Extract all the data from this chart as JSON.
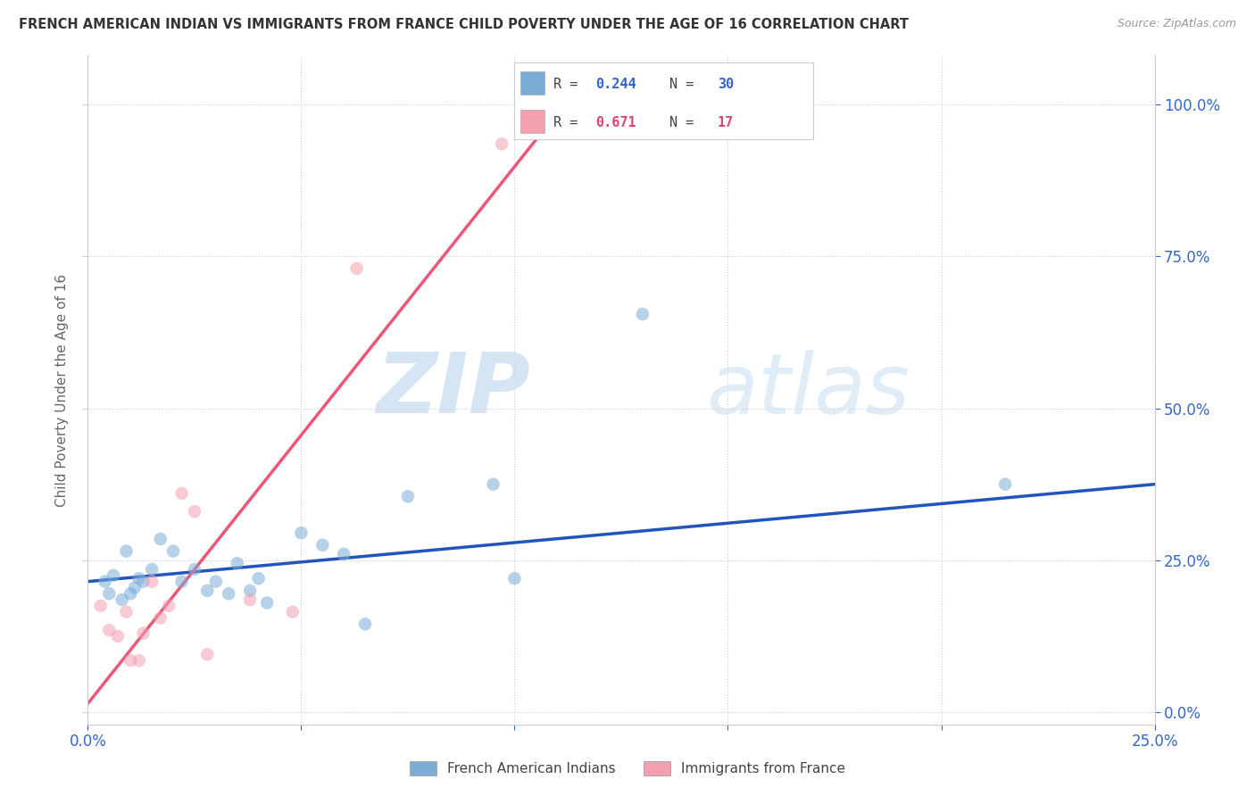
{
  "title": "FRENCH AMERICAN INDIAN VS IMMIGRANTS FROM FRANCE CHILD POVERTY UNDER THE AGE OF 16 CORRELATION CHART",
  "source": "Source: ZipAtlas.com",
  "ylabel": "Child Poverty Under the Age of 16",
  "xlim": [
    0.0,
    0.25
  ],
  "ylim": [
    -0.02,
    1.08
  ],
  "yticks": [
    0.0,
    0.25,
    0.5,
    0.75,
    1.0
  ],
  "ytick_labels": [
    "0.0%",
    "25.0%",
    "50.0%",
    "75.0%",
    "100.0%"
  ],
  "xticks": [
    0.0,
    0.05,
    0.1,
    0.15,
    0.2,
    0.25
  ],
  "xtick_labels": [
    "0.0%",
    "",
    "",
    "",
    "",
    "25.0%"
  ],
  "watermark_zip": "ZIP",
  "watermark_atlas": "atlas",
  "legend_blue_r": "R = ",
  "legend_blue_r_val": "0.244",
  "legend_blue_n": "   N = ",
  "legend_blue_n_val": "30",
  "legend_pink_r": "R = ",
  "legend_pink_r_val": "0.671",
  "legend_pink_n": "   N = ",
  "legend_pink_n_val": "17",
  "legend_labels": [
    "French American Indians",
    "Immigrants from France"
  ],
  "blue_scatter": [
    [
      0.004,
      0.215
    ],
    [
      0.005,
      0.195
    ],
    [
      0.006,
      0.225
    ],
    [
      0.008,
      0.185
    ],
    [
      0.009,
      0.265
    ],
    [
      0.01,
      0.195
    ],
    [
      0.011,
      0.205
    ],
    [
      0.012,
      0.22
    ],
    [
      0.013,
      0.215
    ],
    [
      0.015,
      0.235
    ],
    [
      0.017,
      0.285
    ],
    [
      0.02,
      0.265
    ],
    [
      0.022,
      0.215
    ],
    [
      0.025,
      0.235
    ],
    [
      0.028,
      0.2
    ],
    [
      0.03,
      0.215
    ],
    [
      0.033,
      0.195
    ],
    [
      0.035,
      0.245
    ],
    [
      0.038,
      0.2
    ],
    [
      0.04,
      0.22
    ],
    [
      0.042,
      0.18
    ],
    [
      0.05,
      0.295
    ],
    [
      0.055,
      0.275
    ],
    [
      0.06,
      0.26
    ],
    [
      0.065,
      0.145
    ],
    [
      0.075,
      0.355
    ],
    [
      0.095,
      0.375
    ],
    [
      0.1,
      0.22
    ],
    [
      0.13,
      0.655
    ],
    [
      0.215,
      0.375
    ]
  ],
  "pink_scatter": [
    [
      0.003,
      0.175
    ],
    [
      0.005,
      0.135
    ],
    [
      0.007,
      0.125
    ],
    [
      0.009,
      0.165
    ],
    [
      0.01,
      0.085
    ],
    [
      0.012,
      0.085
    ],
    [
      0.013,
      0.13
    ],
    [
      0.015,
      0.215
    ],
    [
      0.017,
      0.155
    ],
    [
      0.019,
      0.175
    ],
    [
      0.022,
      0.36
    ],
    [
      0.025,
      0.33
    ],
    [
      0.028,
      0.095
    ],
    [
      0.038,
      0.185
    ],
    [
      0.048,
      0.165
    ],
    [
      0.063,
      0.73
    ],
    [
      0.097,
      0.935
    ]
  ],
  "blue_line_x": [
    0.0,
    0.25
  ],
  "blue_line_y": [
    0.215,
    0.375
  ],
  "pink_line_x": [
    -0.005,
    0.115
  ],
  "pink_line_y": [
    -0.03,
    1.03
  ],
  "scatter_alpha": 0.55,
  "scatter_size": 110,
  "blue_color": "#7aacd6",
  "pink_color": "#f4a0b0",
  "blue_line_color": "#2255bb",
  "pink_line_color": "#ee5577",
  "blue_text_color": "#3366cc",
  "pink_text_color": "#dd4477",
  "background_color": "#ffffff",
  "grid_color": "#cccccc",
  "grid_linestyle": "dotted"
}
